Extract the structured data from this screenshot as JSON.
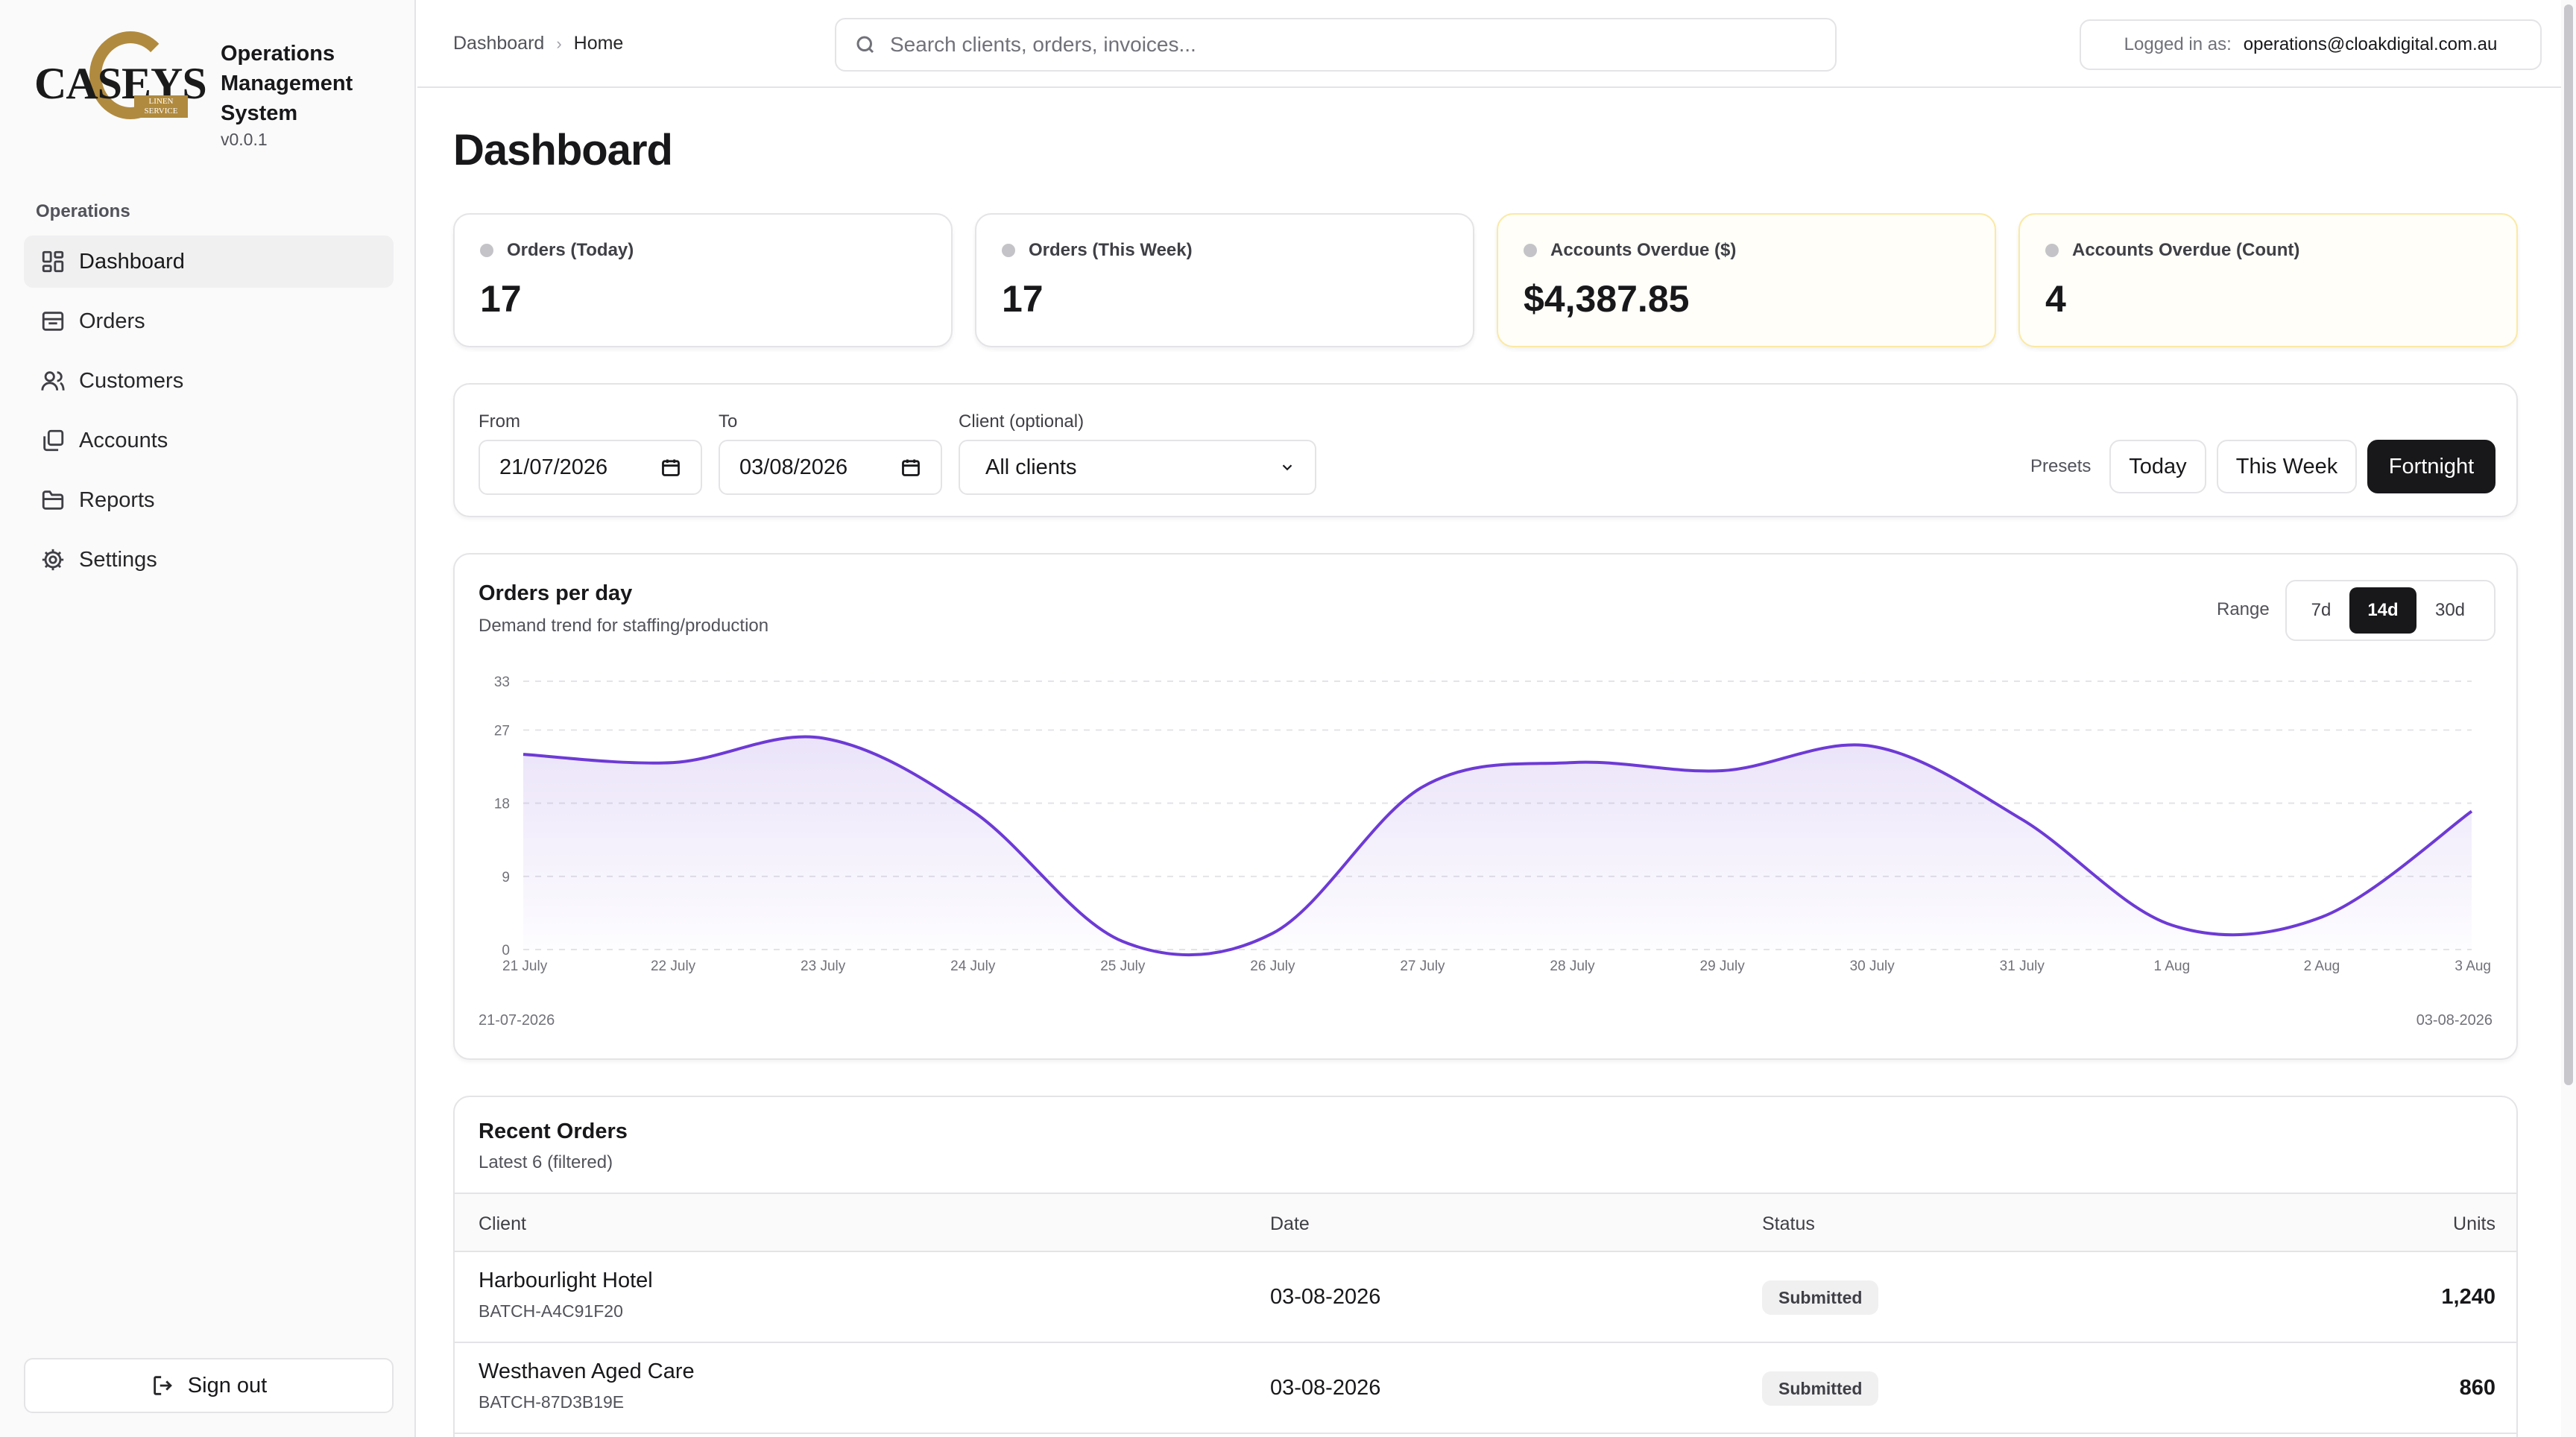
{
  "brand": {
    "logo_word": "CASEYS",
    "logo_plate": "LINEN SERVICE",
    "title_lines": [
      "Operations",
      "Management",
      "System"
    ],
    "version": "v0.0.1"
  },
  "sidebar": {
    "section": "Operations",
    "items": [
      {
        "label": "Dashboard",
        "icon": "dashboard-icon",
        "active": true
      },
      {
        "label": "Orders",
        "icon": "inbox-icon",
        "active": false
      },
      {
        "label": "Customers",
        "icon": "users-icon",
        "active": false
      },
      {
        "label": "Accounts",
        "icon": "copy-icon",
        "active": false
      },
      {
        "label": "Reports",
        "icon": "folder-icon",
        "active": false
      },
      {
        "label": "Settings",
        "icon": "gear-icon",
        "active": false
      }
    ],
    "signout_label": "Sign out"
  },
  "header": {
    "breadcrumb": [
      "Dashboard",
      "Home"
    ],
    "search_placeholder": "Search clients, orders, invoices...",
    "login_label": "Logged in as:",
    "login_email": "operations@cloakdigital.com.au"
  },
  "page": {
    "title": "Dashboard"
  },
  "stats": [
    {
      "label": "Orders (Today)",
      "value": "17",
      "warn": false
    },
    {
      "label": "Orders (This Week)",
      "value": "17",
      "warn": false
    },
    {
      "label": "Accounts Overdue ($)",
      "value": "$4,387.85",
      "warn": true
    },
    {
      "label": "Accounts Overdue (Count)",
      "value": "4",
      "warn": true
    }
  ],
  "filters": {
    "from_label": "From",
    "from_value": "21/07/2026",
    "to_label": "To",
    "to_value": "03/08/2026",
    "client_label": "Client (optional)",
    "client_value": "All clients",
    "presets_label": "Presets",
    "presets": [
      "Today",
      "This Week",
      "Fortnight"
    ],
    "active_preset": "Fortnight"
  },
  "chart": {
    "title": "Orders per day",
    "subtitle": "Demand trend for staffing/production",
    "range_label": "Range",
    "ranges": [
      "7d",
      "14d",
      "30d"
    ],
    "active_range": "14d",
    "start_date": "21-07-2026",
    "end_date": "03-08-2026",
    "accent": "#6d3ad6"
  },
  "chart_data": {
    "type": "area",
    "categories": [
      "21 July",
      "22 July",
      "23 July",
      "24 July",
      "25 July",
      "26 July",
      "27 July",
      "28 July",
      "29 July",
      "30 July",
      "31 July",
      "1 Aug",
      "2 Aug",
      "3 Aug"
    ],
    "values": [
      24,
      23,
      26,
      17,
      1,
      2,
      20,
      23,
      22,
      25,
      16,
      3,
      4,
      17
    ],
    "yticks": [
      0,
      9,
      18,
      27,
      33
    ],
    "ylim": [
      0,
      33
    ],
    "grid": true,
    "legend": "none"
  },
  "orders": {
    "title": "Recent Orders",
    "subtitle": "Latest 6 (filtered)",
    "columns": [
      "Client",
      "Date",
      "Status",
      "Units"
    ],
    "rows": [
      {
        "client": "Harbourlight Hotel",
        "batch": "BATCH-A4C91F20",
        "date": "03-08-2026",
        "status": "Submitted",
        "units": "1,240"
      },
      {
        "client": "Westhaven Aged Care",
        "batch": "BATCH-87D3B19E",
        "date": "03-08-2026",
        "status": "Submitted",
        "units": "860"
      }
    ]
  }
}
